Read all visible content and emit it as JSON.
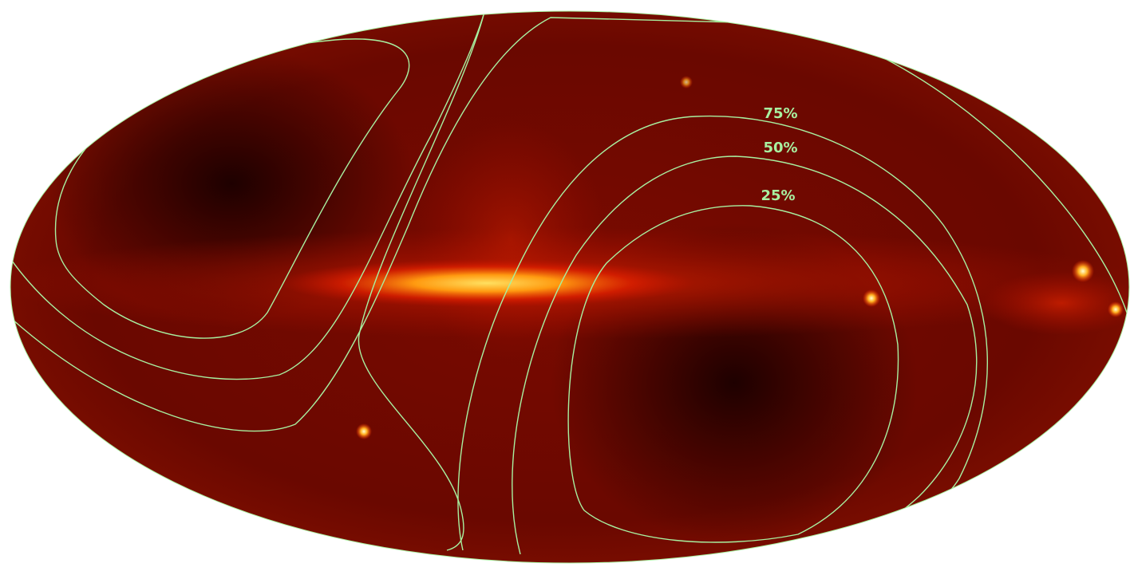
{
  "contours": [
    {
      "label": "75%"
    },
    {
      "label": "50%"
    },
    {
      "label": "25%"
    }
  ]
}
